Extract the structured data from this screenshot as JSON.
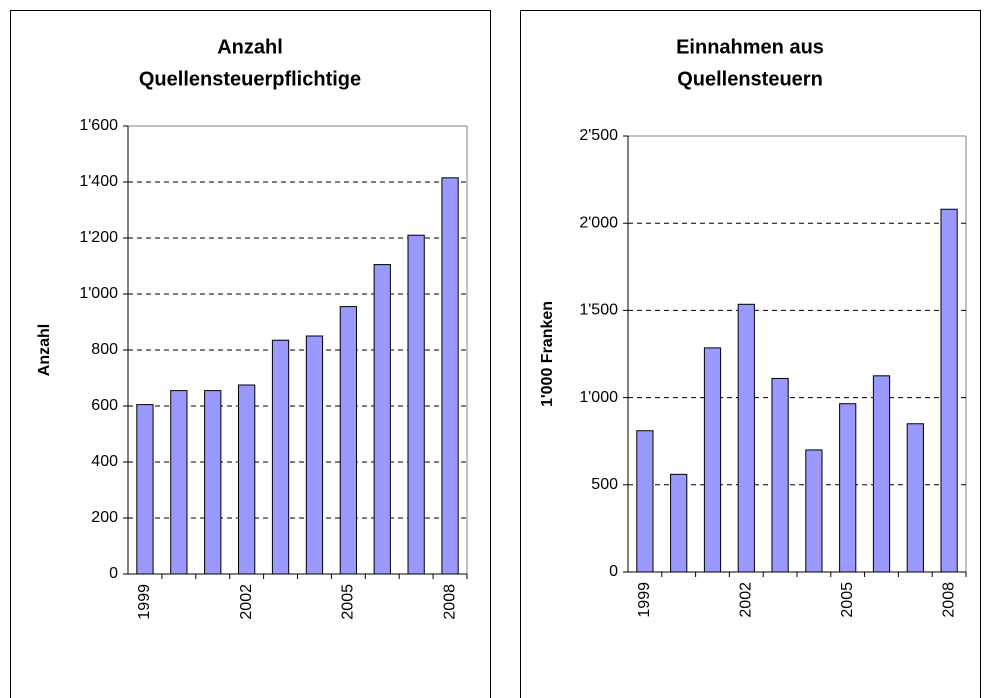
{
  "chart_data": [
    {
      "type": "bar",
      "title": [
        "Anzahl",
        "Quellensteuerpflichtige"
      ],
      "ylabel": "Anzahl",
      "categories": [
        "1999",
        null,
        null,
        "2002",
        null,
        null,
        "2005",
        null,
        null,
        "2008"
      ],
      "values": [
        605,
        655,
        655,
        675,
        835,
        850,
        955,
        1105,
        1210,
        1415
      ],
      "color": "#9999ff",
      "ylim": [
        0,
        1600
      ],
      "yticks": [
        0,
        200,
        400,
        600,
        800,
        {
          "value": 1000,
          "label": "1'000"
        },
        {
          "value": 1200,
          "label": "1'200"
        },
        {
          "value": 1400,
          "label": "1'400"
        },
        {
          "value": 1600,
          "label": "1'600"
        }
      ],
      "grid": true
    },
    {
      "type": "bar",
      "title": [
        "Einnahmen aus",
        "Quellensteuern"
      ],
      "ylabel": "1'000 Franken",
      "categories": [
        "1999",
        null,
        null,
        "2002",
        null,
        null,
        "2005",
        null,
        null,
        "2008"
      ],
      "values": [
        810,
        560,
        1285,
        1535,
        1110,
        700,
        965,
        1125,
        850,
        2080
      ],
      "color": "#9999ff",
      "ylim": [
        0,
        2500
      ],
      "yticks": [
        0,
        500,
        {
          "value": 1000,
          "label": "1'000"
        },
        {
          "value": 1500,
          "label": "1'500"
        },
        {
          "value": 2000,
          "label": "2'000"
        },
        {
          "value": 2500,
          "label": "2'500"
        }
      ],
      "grid": true
    }
  ]
}
